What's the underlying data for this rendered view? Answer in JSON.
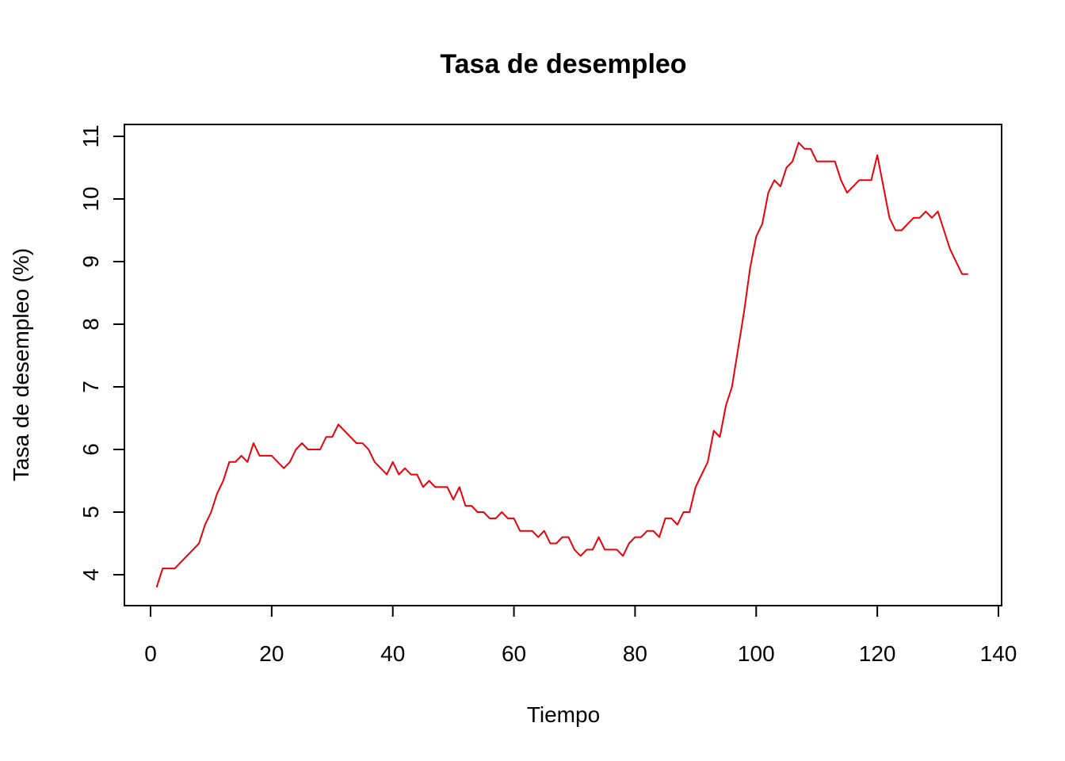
{
  "chart_data": {
    "type": "line",
    "title": "Tasa de desempleo",
    "xlabel": "Tiempo",
    "ylabel": "Tasa de desempleo (%)",
    "xlim": [
      0,
      140
    ],
    "ylim": [
      4,
      11
    ],
    "xticks": [
      0,
      20,
      40,
      60,
      80,
      100,
      120,
      140
    ],
    "yticks": [
      4,
      5,
      6,
      7,
      8,
      9,
      10,
      11
    ],
    "grid": false,
    "legend": "none",
    "color": "#e8000b",
    "x_start": 1,
    "values": [
      3.8,
      4.1,
      4.1,
      4.1,
      4.2,
      4.3,
      4.4,
      4.5,
      4.8,
      5.0,
      5.3,
      5.5,
      5.8,
      5.8,
      5.9,
      5.8,
      6.1,
      5.9,
      5.9,
      5.9,
      5.8,
      5.7,
      5.8,
      6.0,
      6.1,
      6.0,
      6.0,
      6.0,
      6.2,
      6.2,
      6.4,
      6.3,
      6.2,
      6.1,
      6.1,
      6.0,
      5.8,
      5.7,
      5.6,
      5.8,
      5.6,
      5.7,
      5.6,
      5.6,
      5.4,
      5.5,
      5.4,
      5.4,
      5.4,
      5.2,
      5.4,
      5.1,
      5.1,
      5.0,
      5.0,
      4.9,
      4.9,
      5.0,
      4.9,
      4.9,
      4.7,
      4.7,
      4.7,
      4.6,
      4.7,
      4.5,
      4.5,
      4.6,
      4.6,
      4.4,
      4.3,
      4.4,
      4.4,
      4.6,
      4.4,
      4.4,
      4.4,
      4.3,
      4.5,
      4.6,
      4.6,
      4.7,
      4.7,
      4.6,
      4.9,
      4.9,
      4.8,
      5.0,
      5.0,
      5.4,
      5.6,
      5.8,
      6.3,
      6.2,
      6.7,
      7.0,
      7.6,
      8.2,
      8.9,
      9.4,
      9.6,
      10.1,
      10.3,
      10.2,
      10.5,
      10.6,
      10.9,
      10.8,
      10.8,
      10.6,
      10.6,
      10.6,
      10.6,
      10.3,
      10.1,
      10.2,
      10.3,
      10.3,
      10.3,
      10.7,
      10.2,
      9.7,
      9.5,
      9.5,
      9.6,
      9.7,
      9.7,
      9.8,
      9.7,
      9.8,
      9.5,
      9.2,
      9.0,
      8.8,
      8.8
    ]
  }
}
